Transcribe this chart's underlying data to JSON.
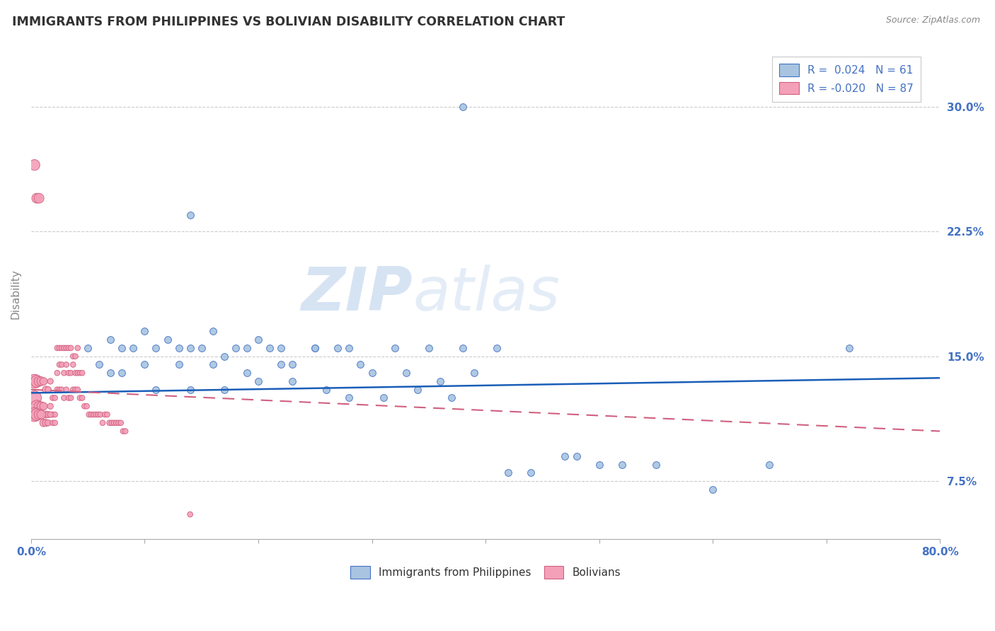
{
  "title": "IMMIGRANTS FROM PHILIPPINES VS BOLIVIAN DISABILITY CORRELATION CHART",
  "source": "Source: ZipAtlas.com",
  "ylabel": "Disability",
  "ytick_labels": [
    "7.5%",
    "15.0%",
    "22.5%",
    "30.0%"
  ],
  "ytick_values": [
    0.075,
    0.15,
    0.225,
    0.3
  ],
  "xlim": [
    0.0,
    0.8
  ],
  "ylim": [
    0.04,
    0.335
  ],
  "blue_color": "#a8c4e0",
  "blue_edge_color": "#4472c4",
  "pink_color": "#f4a0b8",
  "pink_edge_color": "#d06080",
  "blue_line_color": "#1a5eb8",
  "pink_line_color": "#d06080",
  "watermark": "ZIPatlas",
  "blue_x": [
    0.38,
    0.14,
    0.05,
    0.07,
    0.08,
    0.1,
    0.12,
    0.14,
    0.16,
    0.18,
    0.2,
    0.22,
    0.06,
    0.09,
    0.11,
    0.13,
    0.15,
    0.17,
    0.19,
    0.21,
    0.23,
    0.25,
    0.27,
    0.07,
    0.1,
    0.13,
    0.16,
    0.19,
    0.22,
    0.25,
    0.28,
    0.08,
    0.11,
    0.14,
    0.17,
    0.2,
    0.23,
    0.26,
    0.29,
    0.32,
    0.35,
    0.38,
    0.41,
    0.44,
    0.47,
    0.5,
    0.3,
    0.33,
    0.36,
    0.39,
    0.42,
    0.48,
    0.52,
    0.55,
    0.6,
    0.65,
    0.72,
    0.28,
    0.31,
    0.34,
    0.37
  ],
  "blue_y": [
    0.3,
    0.235,
    0.155,
    0.16,
    0.155,
    0.165,
    0.16,
    0.155,
    0.165,
    0.155,
    0.16,
    0.155,
    0.145,
    0.155,
    0.155,
    0.155,
    0.155,
    0.15,
    0.155,
    0.155,
    0.145,
    0.155,
    0.155,
    0.14,
    0.145,
    0.145,
    0.145,
    0.14,
    0.145,
    0.155,
    0.155,
    0.14,
    0.13,
    0.13,
    0.13,
    0.135,
    0.135,
    0.13,
    0.145,
    0.155,
    0.155,
    0.155,
    0.155,
    0.08,
    0.09,
    0.085,
    0.14,
    0.14,
    0.135,
    0.14,
    0.08,
    0.09,
    0.085,
    0.085,
    0.07,
    0.085,
    0.155,
    0.125,
    0.125,
    0.13,
    0.125
  ],
  "blue_size": 50,
  "pink_x": [
    0.003,
    0.005,
    0.007,
    0.009,
    0.011,
    0.013,
    0.015,
    0.017,
    0.019,
    0.021,
    0.003,
    0.005,
    0.007,
    0.009,
    0.011,
    0.013,
    0.015,
    0.017,
    0.019,
    0.021,
    0.003,
    0.005,
    0.007,
    0.009,
    0.011,
    0.013,
    0.015,
    0.017,
    0.019,
    0.021,
    0.023,
    0.025,
    0.027,
    0.029,
    0.031,
    0.033,
    0.035,
    0.037,
    0.039,
    0.041,
    0.043,
    0.045,
    0.023,
    0.025,
    0.027,
    0.029,
    0.031,
    0.033,
    0.035,
    0.037,
    0.039,
    0.041,
    0.043,
    0.045,
    0.023,
    0.025,
    0.027,
    0.029,
    0.031,
    0.033,
    0.035,
    0.037,
    0.039,
    0.041,
    0.047,
    0.049,
    0.051,
    0.053,
    0.055,
    0.057,
    0.059,
    0.061,
    0.063,
    0.065,
    0.067,
    0.069,
    0.071,
    0.073,
    0.075,
    0.077,
    0.079,
    0.081,
    0.083,
    0.14,
    0.003,
    0.005,
    0.007
  ],
  "pink_y": [
    0.135,
    0.135,
    0.135,
    0.135,
    0.135,
    0.13,
    0.13,
    0.135,
    0.125,
    0.125,
    0.125,
    0.12,
    0.12,
    0.12,
    0.12,
    0.115,
    0.115,
    0.12,
    0.115,
    0.115,
    0.115,
    0.115,
    0.115,
    0.115,
    0.11,
    0.11,
    0.11,
    0.115,
    0.11,
    0.11,
    0.13,
    0.13,
    0.13,
    0.125,
    0.13,
    0.125,
    0.125,
    0.13,
    0.13,
    0.13,
    0.125,
    0.125,
    0.14,
    0.145,
    0.145,
    0.14,
    0.145,
    0.14,
    0.14,
    0.145,
    0.14,
    0.14,
    0.14,
    0.14,
    0.155,
    0.155,
    0.155,
    0.155,
    0.155,
    0.155,
    0.155,
    0.15,
    0.15,
    0.155,
    0.12,
    0.12,
    0.115,
    0.115,
    0.115,
    0.115,
    0.115,
    0.115,
    0.11,
    0.115,
    0.115,
    0.11,
    0.11,
    0.11,
    0.11,
    0.11,
    0.11,
    0.105,
    0.105,
    0.055,
    0.265,
    0.245,
    0.245
  ],
  "pink_sizes": [
    200,
    150,
    100,
    80,
    60,
    50,
    40,
    35,
    30,
    30,
    200,
    150,
    100,
    80,
    60,
    50,
    40,
    35,
    30,
    30,
    200,
    150,
    100,
    80,
    60,
    50,
    40,
    35,
    30,
    30,
    30,
    30,
    30,
    30,
    30,
    30,
    30,
    30,
    30,
    30,
    30,
    30,
    30,
    30,
    30,
    30,
    30,
    30,
    30,
    30,
    30,
    30,
    30,
    30,
    30,
    30,
    30,
    30,
    30,
    30,
    30,
    30,
    30,
    30,
    30,
    30,
    30,
    30,
    30,
    30,
    30,
    30,
    30,
    30,
    30,
    30,
    30,
    30,
    30,
    30,
    30,
    30,
    30,
    30,
    120,
    100,
    100
  ],
  "blue_trendline_x": [
    0.0,
    0.8
  ],
  "blue_trendline_y": [
    0.128,
    0.137
  ],
  "pink_trendline_x": [
    0.0,
    0.8
  ],
  "pink_trendline_y": [
    0.13,
    0.105
  ]
}
